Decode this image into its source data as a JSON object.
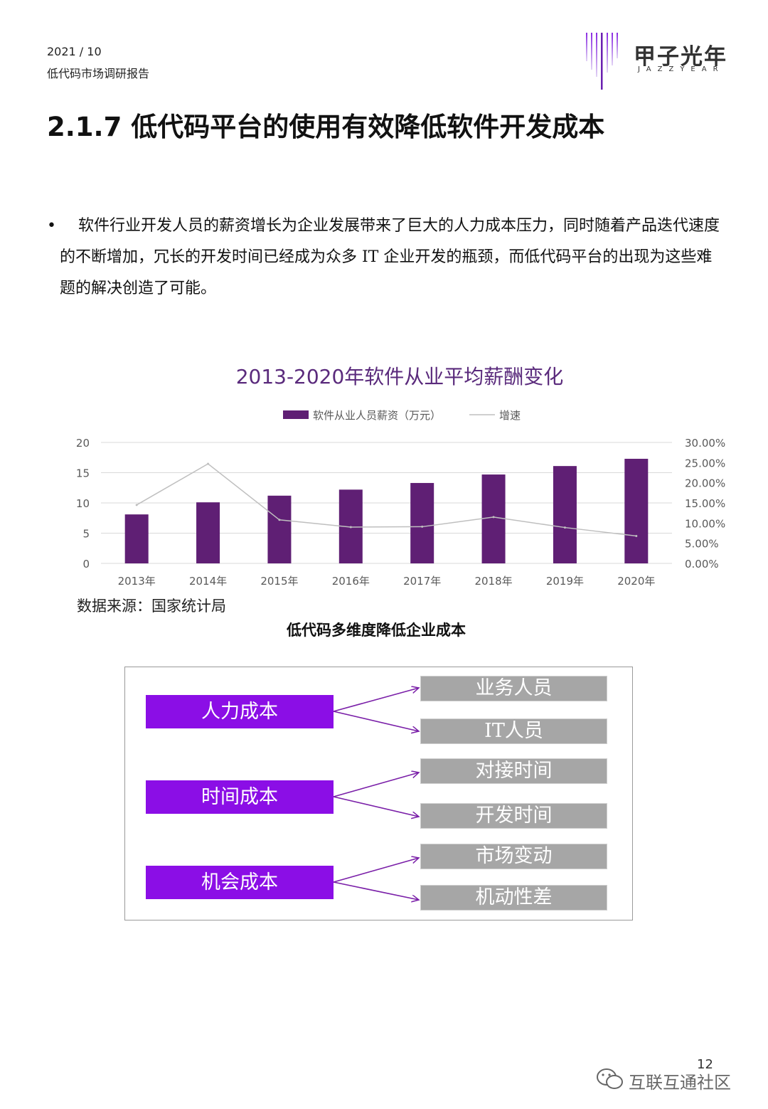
{
  "header": {
    "date": "2021 / 10",
    "report_name": "低代码市场调研报告",
    "logo_cn": "甲子光年",
    "logo_en": "JAZZYEAR"
  },
  "section_title": "2.1.7 低代码平台的使用有效降低软件开发成本",
  "bullet_symbol": "•",
  "paragraph": "软件行业开发人员的薪资增长为企业发展带来了巨大的人力成本压力，同时随着产品迭代速度的不断增加，冗长的开发时间已经成为众多 IT 企业开发的瓶颈，而低代码平台的出现为这些难题的解决创造了可能。",
  "chart_data": {
    "type": "bar",
    "title": "2013-2020年软件从业平均薪酬变化",
    "categories": [
      "2013年",
      "2014年",
      "2015年",
      "2016年",
      "2017年",
      "2018年",
      "2019年",
      "2020年"
    ],
    "series": [
      {
        "name": "软件从业人员薪资（万元）",
        "type": "bar",
        "axis": "left",
        "values": [
          8.1,
          10.1,
          11.2,
          12.2,
          13.3,
          14.7,
          16.1,
          17.3
        ]
      },
      {
        "name": "增速",
        "type": "line",
        "axis": "right",
        "values": [
          14.5,
          24.7,
          10.8,
          9.0,
          9.1,
          11.5,
          8.9,
          6.8
        ]
      }
    ],
    "y_left": {
      "ylim": [
        0,
        20
      ],
      "ticks": [
        "0",
        "5",
        "10",
        "15",
        "20"
      ]
    },
    "y_right": {
      "ylim": [
        0,
        30
      ],
      "ticks": [
        "0.00%",
        "5.00%",
        "10.00%",
        "15.00%",
        "20.00%",
        "25.00%",
        "30.00%"
      ]
    },
    "legend_position": "top",
    "grid": true,
    "colors": {
      "bar": "#5f1f74",
      "line": "#bfbfbf"
    }
  },
  "source_note": "数据来源：国家统计局",
  "diagram": {
    "title": "低代码多维度降低企业成本",
    "groups": [
      {
        "label": "人力成本",
        "items": [
          "业务人员",
          "IT人员"
        ]
      },
      {
        "label": "时间成本",
        "items": [
          "对接时间",
          "开发时间"
        ]
      },
      {
        "label": "机会成本",
        "items": [
          "市场变动",
          "机动性差"
        ]
      }
    ],
    "colors": {
      "left_box": "#8b0ee6",
      "right_box": "#a6a6a6",
      "arrow": "#7a1fa8"
    }
  },
  "footer": {
    "page_number": "12",
    "watermark": "互联互通社区"
  }
}
